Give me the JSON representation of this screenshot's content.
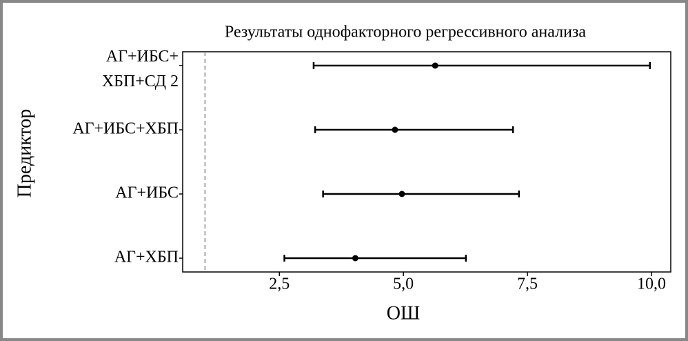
{
  "chart_data": {
    "type": "forest",
    "title": "Результаты однофакторного регрессивного анализа",
    "x_label": "ОШ",
    "y_label": "Предиктор",
    "categories": [
      [
        "АГ+ИБС+",
        "ХБП+СД 2"
      ],
      "АГ+ИБС+ХБП",
      "АГ+ИБС",
      "АГ+ХБП"
    ],
    "values": [
      5.64,
      4.83,
      4.97,
      4.03
    ],
    "lower": [
      3.19,
      3.22,
      3.38,
      2.6
    ],
    "upper": [
      9.97,
      7.21,
      7.33,
      6.26
    ],
    "reference_line": 1,
    "xlim": [
      0.55,
      10.39
    ],
    "xticks": [
      {
        "value": 2.5,
        "label": "2,5"
      },
      {
        "value": 5.0,
        "label": "5,0"
      },
      {
        "value": 7.5,
        "label": "7,5"
      },
      {
        "value": 10.0,
        "label": "10,0"
      }
    ],
    "color": "#000000"
  }
}
